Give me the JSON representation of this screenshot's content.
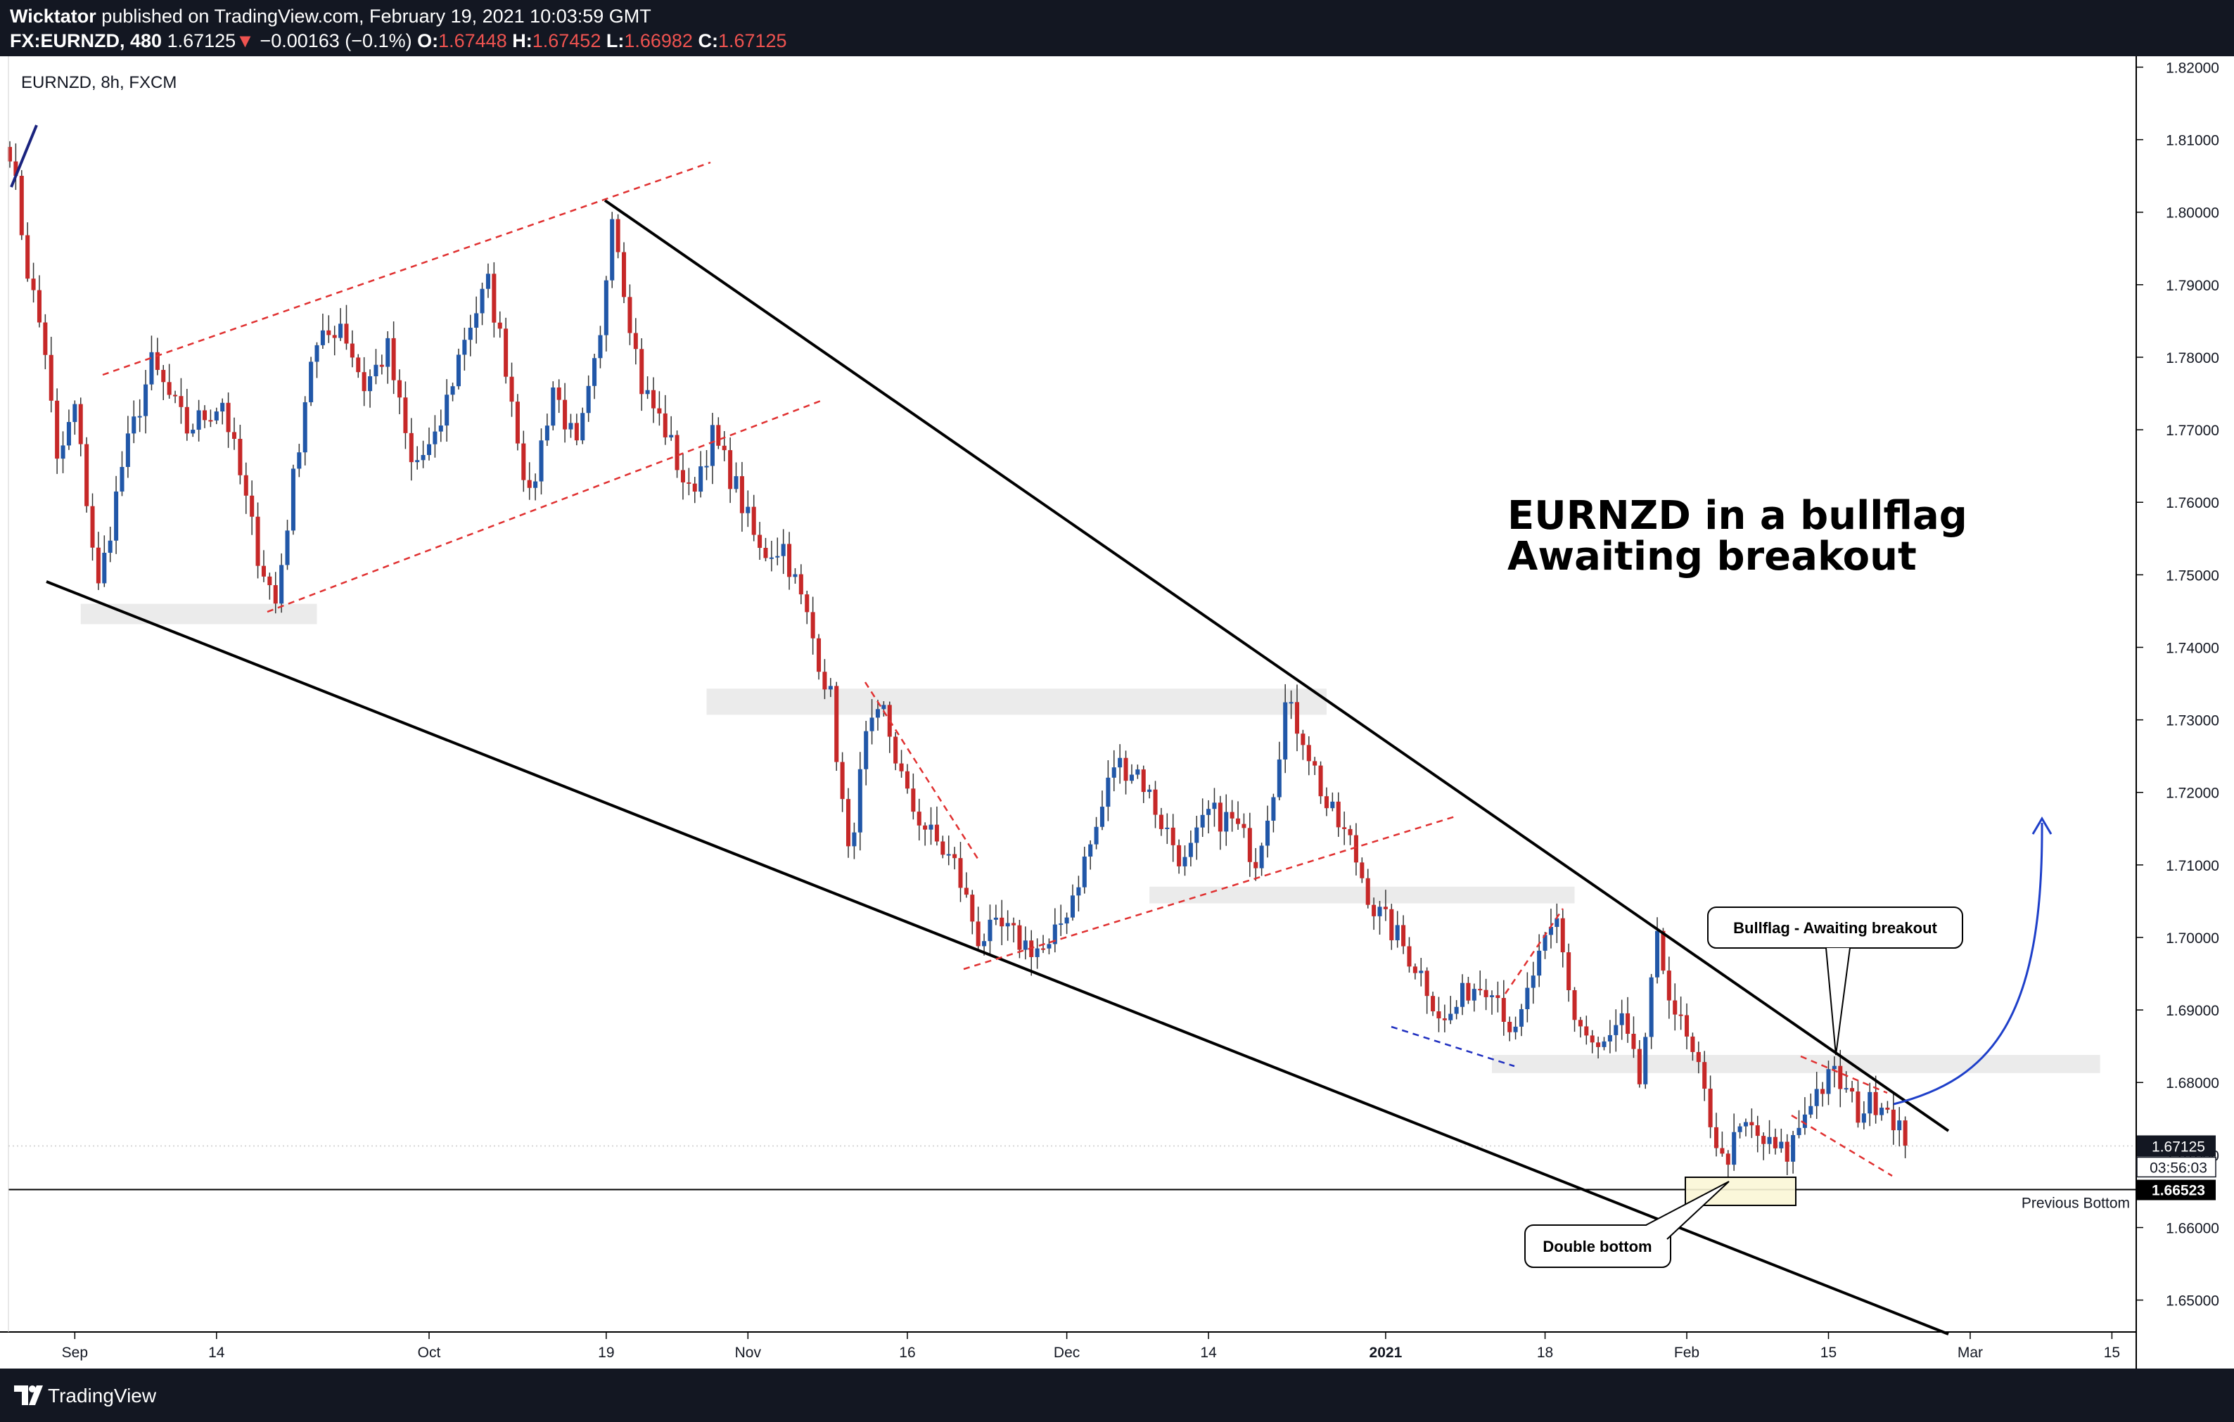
{
  "header": {
    "publisher": "Wicktator",
    "published_text": "published on TradingView.com, February 19, 2021 10:03:59 GMT",
    "symbol": "FX:EURNZD, 480",
    "last": "1.67125",
    "change_arrow": "▼",
    "change": "−0.00163 (−0.1%)",
    "open_label": "O:",
    "open": "1.67448",
    "high_label": "H:",
    "high": "1.67452",
    "low_label": "L:",
    "low": "1.66982",
    "close_label": "C:",
    "close": "1.67125"
  },
  "footer": {
    "brand": "TradingView",
    "logo_icon": "tradingview-logo-icon"
  },
  "chart_data": {
    "type": "candlestick",
    "title": "EURNZD, 8h, FXCM",
    "symbol": "EURNZD",
    "timeframe": "8h",
    "source": "FXCM",
    "up_color": "#2157a8",
    "down_color": "#c62828",
    "ylim": [
      1.6456,
      1.8215
    ],
    "y_ticks": [
      "1.82000",
      "1.81000",
      "1.80000",
      "1.79000",
      "1.78000",
      "1.77000",
      "1.76000",
      "1.75000",
      "1.74000",
      "1.73000",
      "1.72000",
      "1.71000",
      "1.70000",
      "1.69000",
      "1.68000",
      "1.67000",
      "1.66000",
      "1.65000"
    ],
    "x_ticks": [
      {
        "label": "Sep",
        "bar": 11,
        "bold": false
      },
      {
        "label": "14",
        "bar": 35,
        "bold": false
      },
      {
        "label": "Oct",
        "bar": 71,
        "bold": false
      },
      {
        "label": "19",
        "bar": 101,
        "bold": false
      },
      {
        "label": "Nov",
        "bar": 125,
        "bold": false
      },
      {
        "label": "16",
        "bar": 152,
        "bold": false
      },
      {
        "label": "Dec",
        "bar": 179,
        "bold": false
      },
      {
        "label": "14",
        "bar": 203,
        "bold": false
      },
      {
        "label": "2021",
        "bar": 233,
        "bold": true
      },
      {
        "label": "18",
        "bar": 260,
        "bold": false
      },
      {
        "label": "Feb",
        "bar": 284,
        "bold": false
      },
      {
        "label": "15",
        "bar": 308,
        "bold": false
      },
      {
        "label": "Mar",
        "bar": 332,
        "bold": false
      },
      {
        "label": "15",
        "bar": 356,
        "bold": false
      }
    ],
    "price_anchors": [
      [
        0,
        1.809
      ],
      [
        3,
        1.792
      ],
      [
        6,
        1.781
      ],
      [
        8,
        1.765
      ],
      [
        11,
        1.773
      ],
      [
        15,
        1.748
      ],
      [
        19,
        1.765
      ],
      [
        24,
        1.779
      ],
      [
        30,
        1.77
      ],
      [
        36,
        1.774
      ],
      [
        42,
        1.753
      ],
      [
        45,
        1.746
      ],
      [
        51,
        1.78
      ],
      [
        56,
        1.785
      ],
      [
        60,
        1.776
      ],
      [
        64,
        1.781
      ],
      [
        68,
        1.765
      ],
      [
        72,
        1.768
      ],
      [
        77,
        1.783
      ],
      [
        81,
        1.79
      ],
      [
        84,
        1.779
      ],
      [
        88,
        1.76
      ],
      [
        92,
        1.776
      ],
      [
        96,
        1.767
      ],
      [
        100,
        1.782
      ],
      [
        102,
        1.801
      ],
      [
        104,
        1.79
      ],
      [
        107,
        1.776
      ],
      [
        111,
        1.77
      ],
      [
        115,
        1.761
      ],
      [
        119,
        1.769
      ],
      [
        123,
        1.762
      ],
      [
        127,
        1.753
      ],
      [
        131,
        1.754
      ],
      [
        135,
        1.744
      ],
      [
        139,
        1.733
      ],
      [
        142,
        1.711
      ],
      [
        145,
        1.727
      ],
      [
        148,
        1.731
      ],
      [
        152,
        1.719
      ],
      [
        156,
        1.714
      ],
      [
        160,
        1.71
      ],
      [
        164,
        1.7
      ],
      [
        168,
        1.701
      ],
      [
        172,
        1.699
      ],
      [
        176,
        1.698
      ],
      [
        180,
        1.706
      ],
      [
        184,
        1.715
      ],
      [
        187,
        1.724
      ],
      [
        191,
        1.723
      ],
      [
        195,
        1.716
      ],
      [
        199,
        1.71
      ],
      [
        203,
        1.717
      ],
      [
        207,
        1.716
      ],
      [
        211,
        1.711
      ],
      [
        214,
        1.721
      ],
      [
        216,
        1.732
      ],
      [
        219,
        1.728
      ],
      [
        223,
        1.718
      ],
      [
        227,
        1.713
      ],
      [
        231,
        1.704
      ],
      [
        235,
        1.7
      ],
      [
        239,
        1.695
      ],
      [
        243,
        1.688
      ],
      [
        247,
        1.693
      ],
      [
        251,
        1.694
      ],
      [
        255,
        1.686
      ],
      [
        258,
        1.695
      ],
      [
        262,
        1.702
      ],
      [
        265,
        1.689
      ],
      [
        269,
        1.684
      ],
      [
        273,
        1.688
      ],
      [
        276,
        1.68
      ],
      [
        279,
        1.699
      ],
      [
        282,
        1.69
      ],
      [
        286,
        1.681
      ],
      [
        290,
        1.669
      ],
      [
        294,
        1.674
      ],
      [
        298,
        1.671
      ],
      [
        301,
        1.67
      ],
      [
        305,
        1.678
      ],
      [
        309,
        1.681
      ],
      [
        313,
        1.676
      ],
      [
        317,
        1.678
      ],
      [
        320,
        1.674
      ],
      [
        321,
        1.6713
      ]
    ],
    "annotations": {
      "headline_line1": "EURNZD in a bullflag",
      "headline_line2": "Awaiting breakout",
      "callout_bullflag": "Bullflag - Awaiting breakout",
      "callout_double_bottom": "Double bottom",
      "previous_bottom_label": "Previous Bottom",
      "previous_bottom_price": "1.66523"
    },
    "price_labels": {
      "last_price": "1.67125",
      "countdown": "03:56:03",
      "level_price": "1.66523"
    },
    "grid": false,
    "legend": "none"
  }
}
